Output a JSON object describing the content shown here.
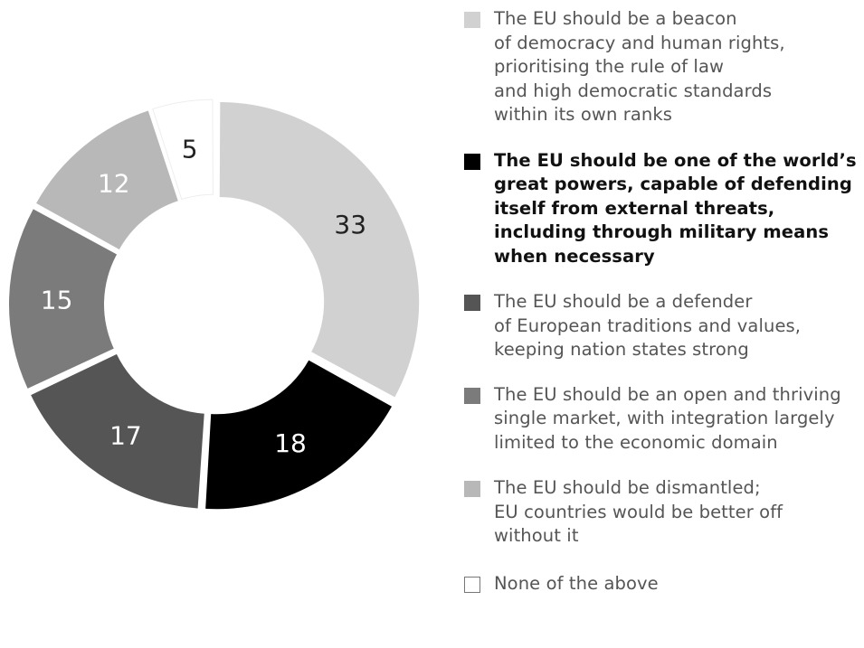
{
  "chart_data": {
    "type": "pie",
    "variant": "donut",
    "title": "",
    "unit": "",
    "categories": [
      "The EU should be a beacon\nof democracy and human rights,\nprioritising the rule of law\nand high democratic standards\nwithin its own ranks",
      "The EU should be one of the world’s\ngreat powers, capable of defending\nitself from external threats,\nincluding through military means\nwhen necessary",
      "The EU should be a defender\nof European traditions and values,\nkeeping nation states strong",
      "The EU should be an open and thriving\nsingle market, with integration largely\nlimited to the economic domain",
      "The EU should be dismantled;\nEU countries would be better off\nwithout it",
      "None of the above"
    ],
    "values": [
      33,
      18,
      17,
      15,
      12,
      5
    ],
    "data_labels": [
      "33",
      "18",
      "17",
      "15",
      "12",
      "5"
    ],
    "colors": [
      "#d1d1d1",
      "#000000",
      "#555555",
      "#7b7b7b",
      "#b8b8b8",
      "#ffffff"
    ],
    "label_colors": [
      "#222222",
      "#ffffff",
      "#ffffff",
      "#ffffff",
      "#ffffff",
      "#222222"
    ],
    "legend_emphasis": [
      false,
      true,
      false,
      false,
      false,
      false
    ],
    "legend_text_colors": [
      "#555555",
      "#111111",
      "#555555",
      "#555555",
      "#555555",
      "#555555"
    ],
    "legend_position": "right"
  }
}
